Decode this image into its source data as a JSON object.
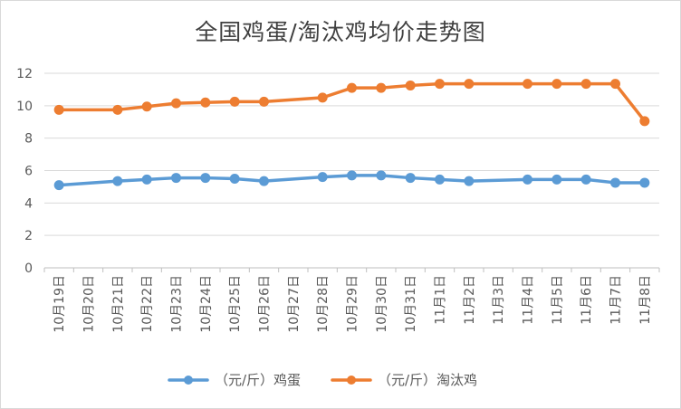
{
  "chart_data": {
    "type": "line",
    "title": "全国鸡蛋/淘汰鸡均价走势图",
    "xlabel": "",
    "ylabel": "",
    "ylim": [
      0,
      12
    ],
    "yticks": [
      "0",
      "2",
      "4",
      "6",
      "8",
      "10",
      "12"
    ],
    "grid": true,
    "legend_position": "bottom",
    "categories": [
      "10月19日",
      "10月20日",
      "10月21日",
      "10月22日",
      "10月23日",
      "10月24日",
      "10月25日",
      "10月26日",
      "10月27日",
      "10月28日",
      "10月29日",
      "10月30日",
      "10月31日",
      "11月1日",
      "11月2日",
      "11月3日",
      "11月4日",
      "11月5日",
      "11月6日",
      "11月7日",
      "11月8日"
    ],
    "series": [
      {
        "name": "（元/斤）鸡蛋",
        "color": "#5b9bd5",
        "values": [
          5.1,
          null,
          5.35,
          5.45,
          5.55,
          5.55,
          5.5,
          5.35,
          null,
          5.6,
          5.7,
          5.7,
          5.55,
          5.45,
          5.35,
          null,
          5.45,
          5.45,
          5.45,
          5.25,
          5.25
        ]
      },
      {
        "name": "（元/斤）淘汰鸡",
        "color": "#ed7d31",
        "values": [
          9.75,
          null,
          9.75,
          9.95,
          10.15,
          10.2,
          10.25,
          10.25,
          null,
          10.5,
          11.1,
          11.1,
          11.25,
          11.35,
          11.35,
          null,
          11.35,
          11.35,
          11.35,
          11.35,
          9.05
        ]
      }
    ]
  }
}
